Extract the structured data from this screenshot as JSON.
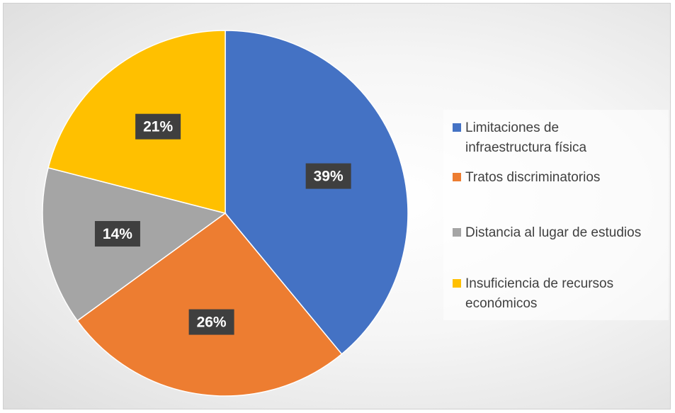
{
  "chart_data": {
    "type": "pie",
    "title": "",
    "slices": [
      {
        "label": "Limitaciones de infraestructura física",
        "value": 39,
        "display": "39%",
        "color": "#4472C4"
      },
      {
        "label": "Tratos discriminatorios",
        "value": 26,
        "display": "26%",
        "color": "#ED7D31"
      },
      {
        "label": "Distancia al lugar de estudios",
        "value": 14,
        "display": "14%",
        "color": "#A5A5A5"
      },
      {
        "label": "Insuficiencia de recursos económicos",
        "value": 21,
        "display": "21%",
        "color": "#FFC000"
      }
    ],
    "legend": {
      "placement": "right",
      "items": [
        {
          "lines": [
            "Limitaciones de",
            "infraestructura física"
          ]
        },
        {
          "lines": [
            "Tratos discriminatorios"
          ]
        },
        {
          "lines": [
            "Distancia al lugar de estudios"
          ]
        },
        {
          "lines": [
            "Insuficiencia de recursos",
            "económicos"
          ]
        }
      ]
    }
  }
}
